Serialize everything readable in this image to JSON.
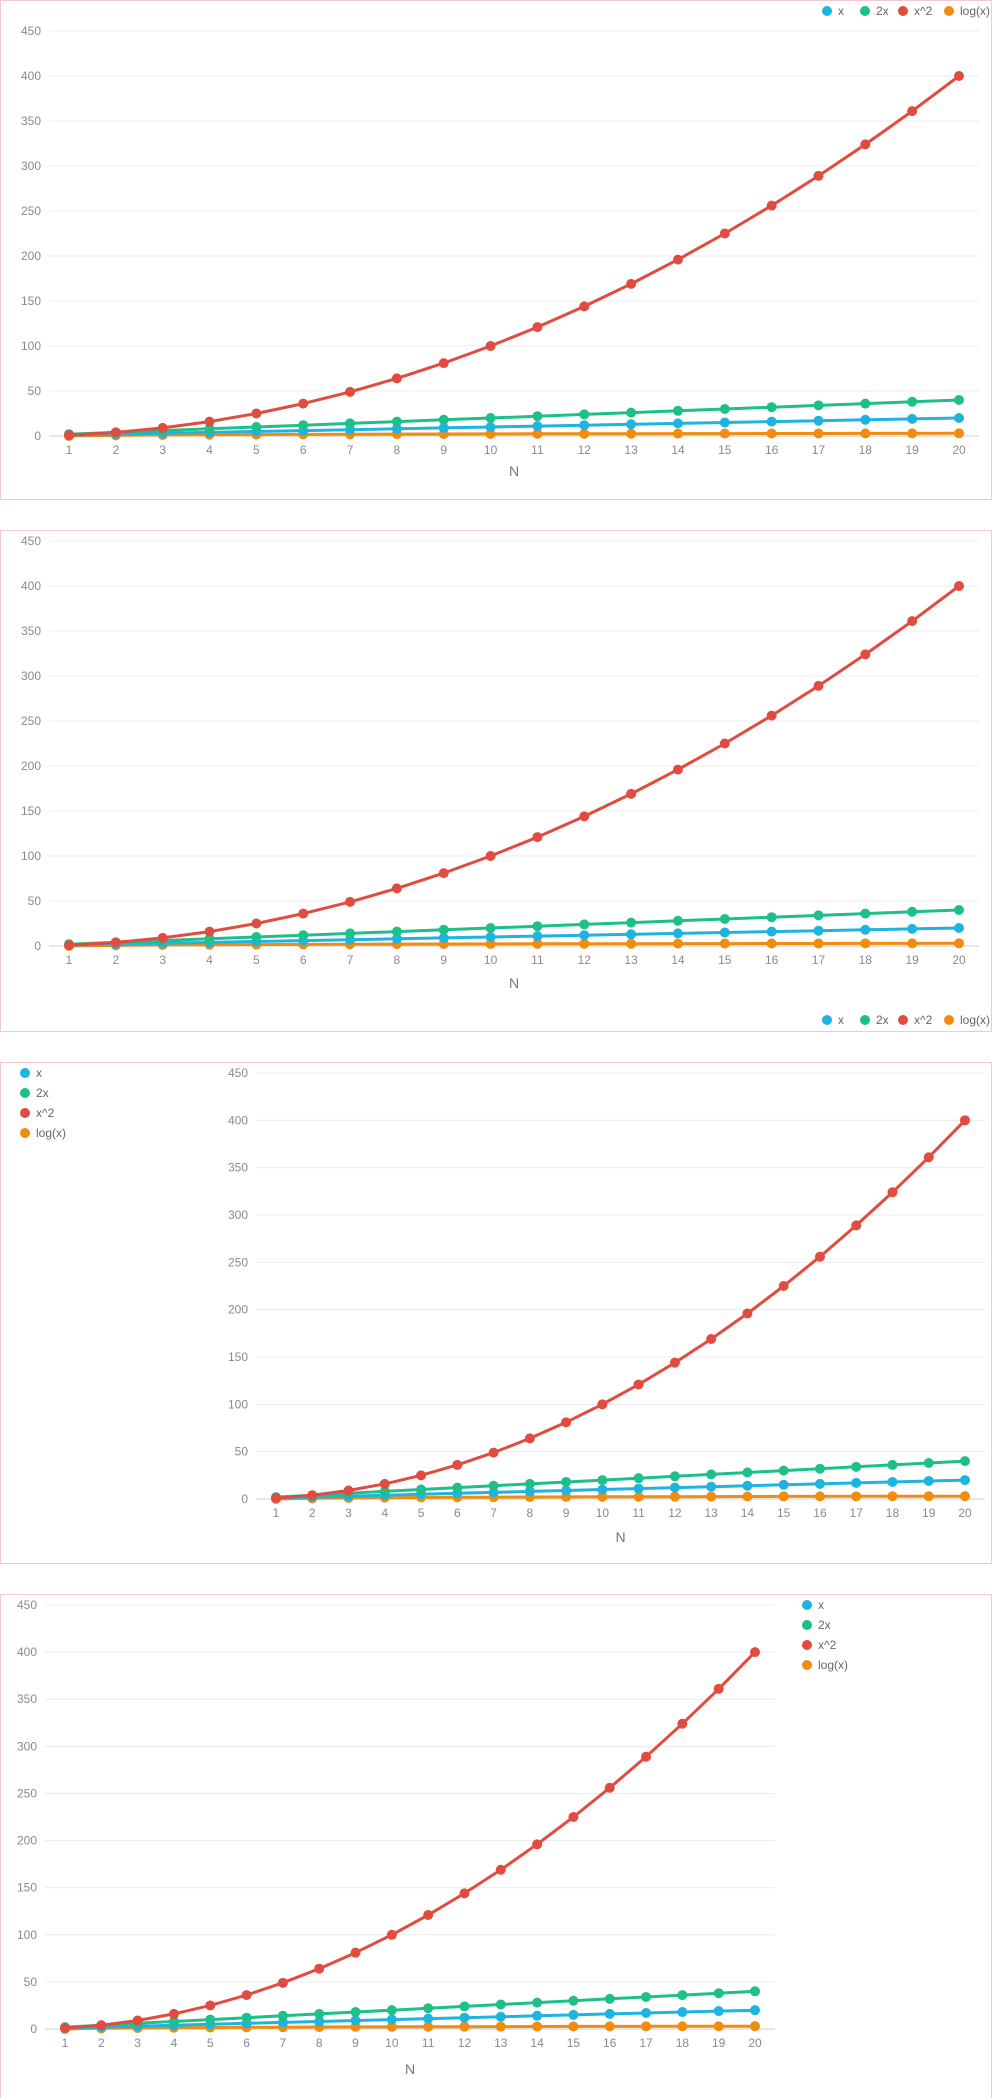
{
  "chart_data": [
    {
      "type": "line",
      "legend_position": "top-right",
      "xlabel": "N",
      "ylabel": "",
      "ylim": [
        0,
        450
      ],
      "y_ticks": [
        0,
        50,
        100,
        150,
        200,
        250,
        300,
        350,
        400,
        450
      ],
      "categories": [
        "1",
        "2",
        "3",
        "4",
        "5",
        "6",
        "7",
        "8",
        "9",
        "10",
        "11",
        "12",
        "13",
        "14",
        "15",
        "16",
        "17",
        "18",
        "19",
        "20"
      ],
      "series": [
        {
          "name": "x",
          "color": "#1fb3e0",
          "values": [
            1,
            2,
            3,
            4,
            5,
            6,
            7,
            8,
            9,
            10,
            11,
            12,
            13,
            14,
            15,
            16,
            17,
            18,
            19,
            20
          ]
        },
        {
          "name": "2x",
          "color": "#1dbf8a",
          "values": [
            2,
            4,
            6,
            8,
            10,
            12,
            14,
            16,
            18,
            20,
            22,
            24,
            26,
            28,
            30,
            32,
            34,
            36,
            38,
            40
          ]
        },
        {
          "name": "x^2",
          "color": "#e24b3f",
          "values": [
            1,
            4,
            9,
            16,
            25,
            36,
            49,
            64,
            81,
            100,
            121,
            144,
            169,
            196,
            225,
            256,
            289,
            324,
            361,
            400
          ]
        },
        {
          "name": "log(x)",
          "color": "#f28c0f",
          "values": [
            0,
            0.69,
            1.1,
            1.39,
            1.61,
            1.79,
            1.95,
            2.08,
            2.2,
            2.3,
            2.4,
            2.48,
            2.56,
            2.64,
            2.71,
            2.77,
            2.83,
            2.89,
            2.94,
            3.0
          ]
        }
      ]
    },
    {
      "type": "line",
      "legend_position": "bottom-right",
      "xlabel": "N",
      "ylabel": "",
      "ylim": [
        0,
        450
      ],
      "y_ticks": [
        0,
        50,
        100,
        150,
        200,
        250,
        300,
        350,
        400,
        450
      ],
      "categories": [
        "1",
        "2",
        "3",
        "4",
        "5",
        "6",
        "7",
        "8",
        "9",
        "10",
        "11",
        "12",
        "13",
        "14",
        "15",
        "16",
        "17",
        "18",
        "19",
        "20"
      ],
      "series": [
        {
          "name": "x",
          "color": "#1fb3e0",
          "values": [
            1,
            2,
            3,
            4,
            5,
            6,
            7,
            8,
            9,
            10,
            11,
            12,
            13,
            14,
            15,
            16,
            17,
            18,
            19,
            20
          ]
        },
        {
          "name": "2x",
          "color": "#1dbf8a",
          "values": [
            2,
            4,
            6,
            8,
            10,
            12,
            14,
            16,
            18,
            20,
            22,
            24,
            26,
            28,
            30,
            32,
            34,
            36,
            38,
            40
          ]
        },
        {
          "name": "x^2",
          "color": "#e24b3f",
          "values": [
            1,
            4,
            9,
            16,
            25,
            36,
            49,
            64,
            81,
            100,
            121,
            144,
            169,
            196,
            225,
            256,
            289,
            324,
            361,
            400
          ]
        },
        {
          "name": "log(x)",
          "color": "#f28c0f",
          "values": [
            0,
            0.69,
            1.1,
            1.39,
            1.61,
            1.79,
            1.95,
            2.08,
            2.2,
            2.3,
            2.4,
            2.48,
            2.56,
            2.64,
            2.71,
            2.77,
            2.83,
            2.89,
            2.94,
            3.0
          ]
        }
      ]
    },
    {
      "type": "line",
      "legend_position": "left",
      "xlabel": "N",
      "ylabel": "",
      "ylim": [
        0,
        450
      ],
      "y_ticks": [
        0,
        50,
        100,
        150,
        200,
        250,
        300,
        350,
        400,
        450
      ],
      "categories": [
        "1",
        "2",
        "3",
        "4",
        "5",
        "6",
        "7",
        "8",
        "9",
        "10",
        "11",
        "12",
        "13",
        "14",
        "15",
        "16",
        "17",
        "18",
        "19",
        "20"
      ],
      "series": [
        {
          "name": "x",
          "color": "#1fb3e0",
          "values": [
            1,
            2,
            3,
            4,
            5,
            6,
            7,
            8,
            9,
            10,
            11,
            12,
            13,
            14,
            15,
            16,
            17,
            18,
            19,
            20
          ]
        },
        {
          "name": "2x",
          "color": "#1dbf8a",
          "values": [
            2,
            4,
            6,
            8,
            10,
            12,
            14,
            16,
            18,
            20,
            22,
            24,
            26,
            28,
            30,
            32,
            34,
            36,
            38,
            40
          ]
        },
        {
          "name": "x^2",
          "color": "#e24b3f",
          "values": [
            1,
            4,
            9,
            16,
            25,
            36,
            49,
            64,
            81,
            100,
            121,
            144,
            169,
            196,
            225,
            256,
            289,
            324,
            361,
            400
          ]
        },
        {
          "name": "log(x)",
          "color": "#f28c0f",
          "values": [
            0,
            0.69,
            1.1,
            1.39,
            1.61,
            1.79,
            1.95,
            2.08,
            2.2,
            2.3,
            2.4,
            2.48,
            2.56,
            2.64,
            2.71,
            2.77,
            2.83,
            2.89,
            2.94,
            3.0
          ]
        }
      ]
    },
    {
      "type": "line",
      "legend_position": "right",
      "xlabel": "N",
      "ylabel": "",
      "ylim": [
        0,
        450
      ],
      "y_ticks": [
        0,
        50,
        100,
        150,
        200,
        250,
        300,
        350,
        400,
        450
      ],
      "categories": [
        "1",
        "2",
        "3",
        "4",
        "5",
        "6",
        "7",
        "8",
        "9",
        "10",
        "11",
        "12",
        "13",
        "14",
        "15",
        "16",
        "17",
        "18",
        "19",
        "20"
      ],
      "series": [
        {
          "name": "x",
          "color": "#1fb3e0",
          "values": [
            1,
            2,
            3,
            4,
            5,
            6,
            7,
            8,
            9,
            10,
            11,
            12,
            13,
            14,
            15,
            16,
            17,
            18,
            19,
            20
          ]
        },
        {
          "name": "2x",
          "color": "#1dbf8a",
          "values": [
            2,
            4,
            6,
            8,
            10,
            12,
            14,
            16,
            18,
            20,
            22,
            24,
            26,
            28,
            30,
            32,
            34,
            36,
            38,
            40
          ]
        },
        {
          "name": "x^2",
          "color": "#e24b3f",
          "values": [
            1,
            4,
            9,
            16,
            25,
            36,
            49,
            64,
            81,
            100,
            121,
            144,
            169,
            196,
            225,
            256,
            289,
            324,
            361,
            400
          ]
        },
        {
          "name": "log(x)",
          "color": "#f28c0f",
          "values": [
            0,
            0.69,
            1.1,
            1.39,
            1.61,
            1.79,
            1.95,
            2.08,
            2.2,
            2.3,
            2.4,
            2.48,
            2.56,
            2.64,
            2.71,
            2.77,
            2.83,
            2.89,
            2.94,
            3.0
          ]
        }
      ]
    }
  ]
}
